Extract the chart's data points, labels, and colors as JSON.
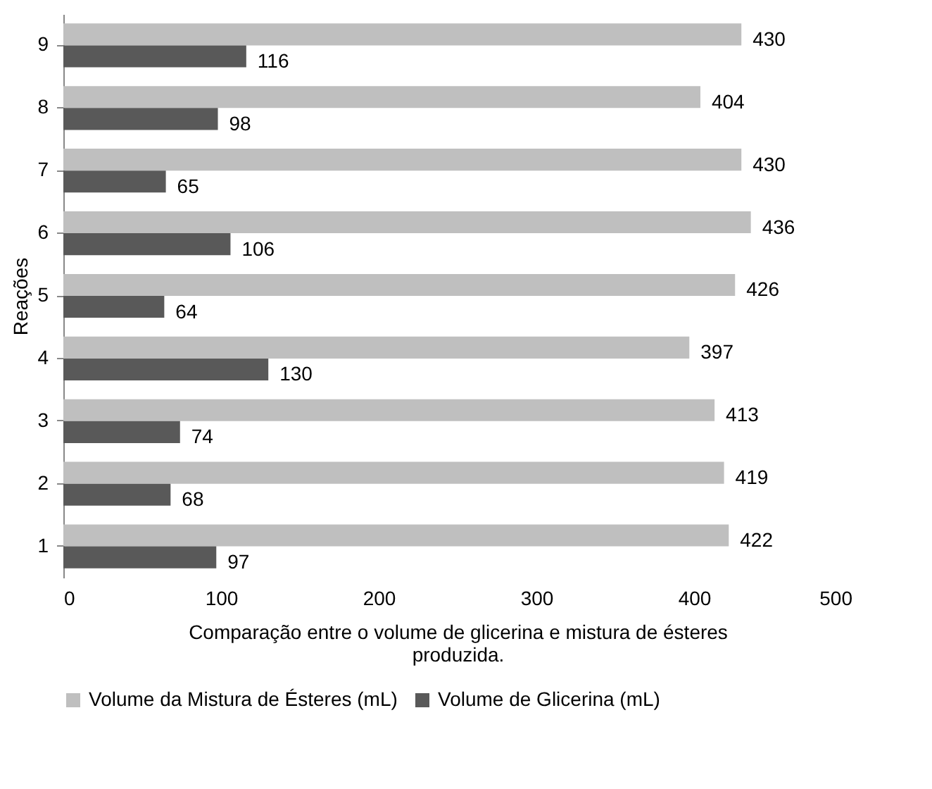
{
  "chart_data": {
    "type": "bar",
    "orientation": "horizontal",
    "categories": [
      "9",
      "8",
      "7",
      "6",
      "5",
      "4",
      "3",
      "2",
      "1"
    ],
    "series": [
      {
        "name": "Volume da Mistura de Ésteres (mL)",
        "color": "#bfbfbf",
        "values": [
          430,
          404,
          430,
          436,
          426,
          397,
          413,
          419,
          422
        ]
      },
      {
        "name": "Volume de Glicerina (mL)",
        "color": "#595959",
        "values": [
          116,
          98,
          65,
          106,
          64,
          130,
          74,
          68,
          97
        ]
      }
    ],
    "xlim": [
      0,
      500
    ],
    "xticks": [
      0,
      100,
      200,
      300,
      400,
      500
    ],
    "xlabel": "Comparação entre o volume de glicerina e mistura de ésteres produzida.",
    "ylabel": "Reações",
    "data_labels": true,
    "legend": "bottom"
  }
}
